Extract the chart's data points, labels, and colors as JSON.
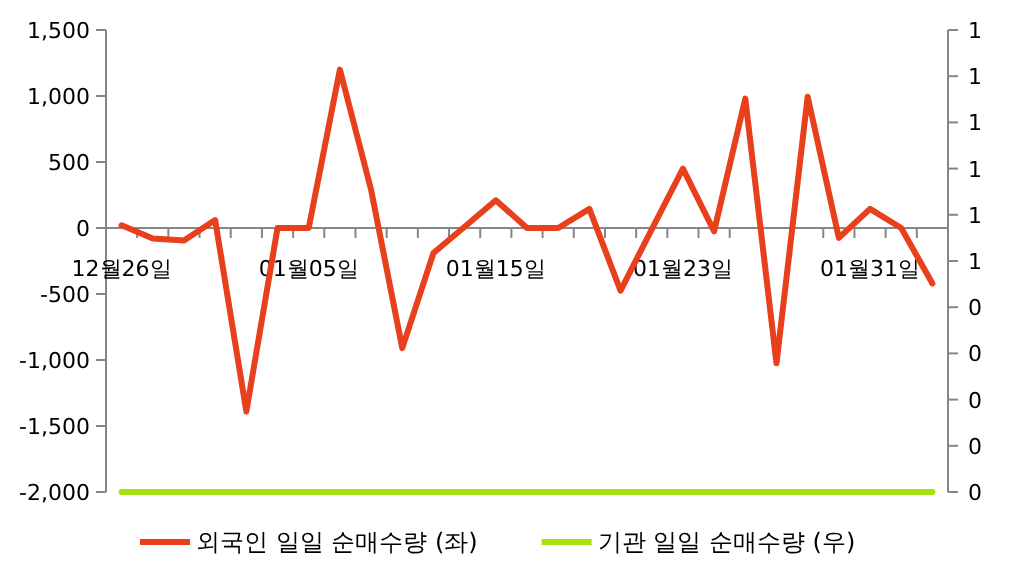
{
  "chart_data": {
    "type": "line",
    "categories": [
      "12월26일",
      null,
      null,
      null,
      null,
      null,
      "01월05일",
      null,
      null,
      null,
      null,
      null,
      "01월15일",
      null,
      null,
      null,
      null,
      null,
      "01월23일",
      null,
      null,
      null,
      null,
      null,
      "01월31일",
      null,
      null
    ],
    "series": [
      {
        "name": "외국인 일일 순매수량 (좌)",
        "color": "#e8401c",
        "values": [
          20,
          -80,
          -95,
          60,
          -1390,
          0,
          0,
          1200,
          290,
          -910,
          -190,
          10,
          210,
          0,
          0,
          145,
          -475,
          -10,
          450,
          -25,
          980,
          -1025,
          995,
          -75,
          145,
          0,
          -420
        ]
      },
      {
        "name": "기관 일일 순매수량 (우)",
        "color": "#a8e010",
        "axis": "y2",
        "values": [
          0,
          0,
          0,
          0,
          0,
          0,
          0,
          0,
          0,
          0,
          0,
          0,
          0,
          0,
          0,
          0,
          0,
          0,
          0,
          0,
          0,
          0,
          0,
          0,
          0,
          0,
          0
        ]
      }
    ],
    "ylim": [
      -2000,
      1500
    ],
    "yticks": [
      {
        "value": -2000,
        "label": "-2,000"
      },
      {
        "value": -1500,
        "label": "-1,500"
      },
      {
        "value": -1000,
        "label": "-1,000"
      },
      {
        "value": -500,
        "label": "-500"
      },
      0,
      500,
      {
        "value": 1000,
        "label": "1,000"
      },
      {
        "value": 1500,
        "label": "1,500"
      }
    ],
    "y2lim": [
      0,
      1
    ],
    "y2ticks": [
      0,
      {
        "value": 0.1,
        "label": "0"
      },
      {
        "value": 0.2,
        "label": "0"
      },
      {
        "value": 0.3,
        "label": "0"
      },
      {
        "value": 0.4,
        "label": "0"
      },
      {
        "value": 0.5,
        "label": "1"
      },
      {
        "value": 0.6,
        "label": "1"
      },
      {
        "value": 0.7,
        "label": "1"
      },
      {
        "value": 0.8,
        "label": "1"
      },
      {
        "value": 0.9,
        "label": "1"
      },
      1
    ],
    "legend": "bottom",
    "marker": "none",
    "line_style": "solid"
  }
}
